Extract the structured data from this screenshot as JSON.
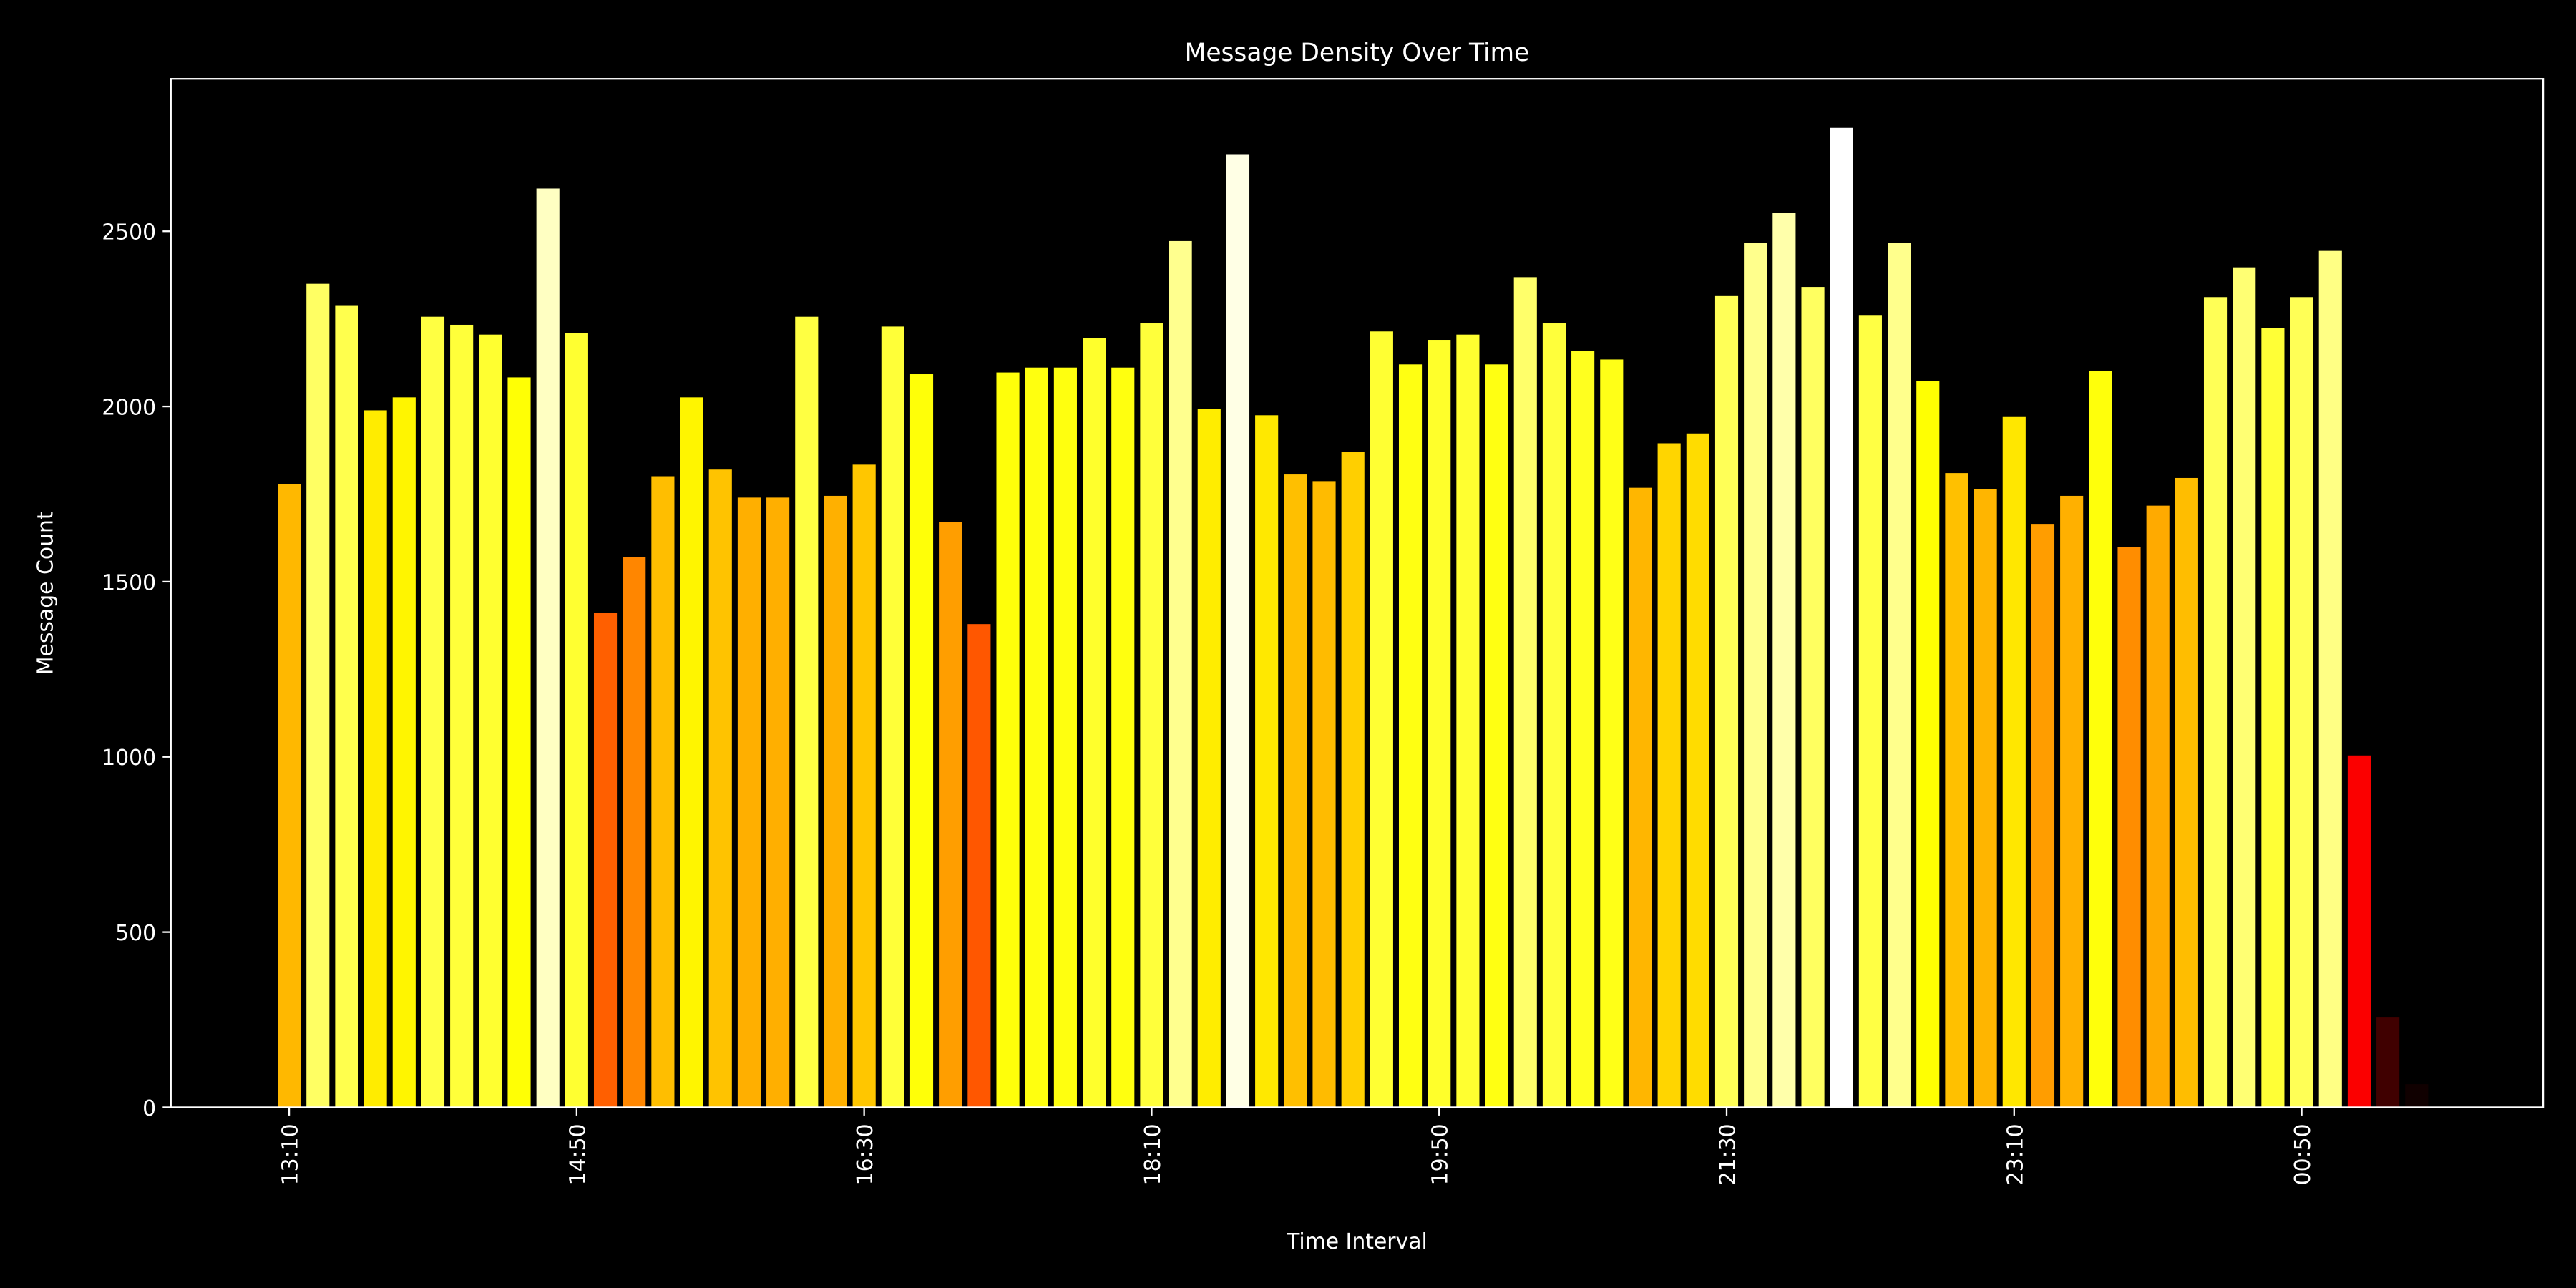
{
  "chart_data": {
    "type": "bar",
    "title": "Message Density Over Time",
    "xlabel": "Time Interval",
    "ylabel": "Message Count",
    "categories": [
      "13:10",
      null,
      null,
      null,
      null,
      null,
      null,
      null,
      null,
      null,
      "14:50",
      null,
      null,
      null,
      null,
      null,
      null,
      null,
      null,
      null,
      "16:30",
      null,
      null,
      null,
      null,
      null,
      null,
      null,
      null,
      null,
      "18:10",
      null,
      null,
      null,
      null,
      null,
      null,
      null,
      null,
      null,
      "19:50",
      null,
      null,
      null,
      null,
      null,
      null,
      null,
      null,
      null,
      "21:30",
      null,
      null,
      null,
      null,
      null,
      null,
      null,
      null,
      null,
      "23:10",
      null,
      null,
      null,
      null,
      null,
      null,
      null,
      null,
      null,
      "00:50",
      null,
      null,
      null,
      null
    ],
    "values": [
      1778,
      2350,
      2289,
      1989,
      2026,
      2256,
      2233,
      2205,
      2083,
      2622,
      2209,
      1412,
      1571,
      1801,
      2026,
      1820,
      1740,
      1740,
      2256,
      1745,
      1834,
      2228,
      2092,
      1670,
      1379,
      2097,
      2111,
      2111,
      2195,
      2111,
      2237,
      2472,
      1993,
      2720,
      1975,
      1806,
      1787,
      1871,
      2214,
      2120,
      2190,
      2205,
      2120,
      2369,
      2237,
      2158,
      2134,
      1768,
      1895,
      1923,
      2317,
      2467,
      2552,
      2341,
      2795,
      2261,
      2467,
      2073,
      1810,
      1764,
      1970,
      1665,
      1745,
      2101,
      1599,
      1717,
      1796,
      2312,
      2397,
      2223,
      2312,
      2444,
      1004,
      258,
      66
    ],
    "colormap": "hot",
    "ylim": [
      0,
      2935
    ],
    "yticks": [
      0,
      500,
      1000,
      1500,
      2000,
      2500
    ],
    "grid": false
  }
}
